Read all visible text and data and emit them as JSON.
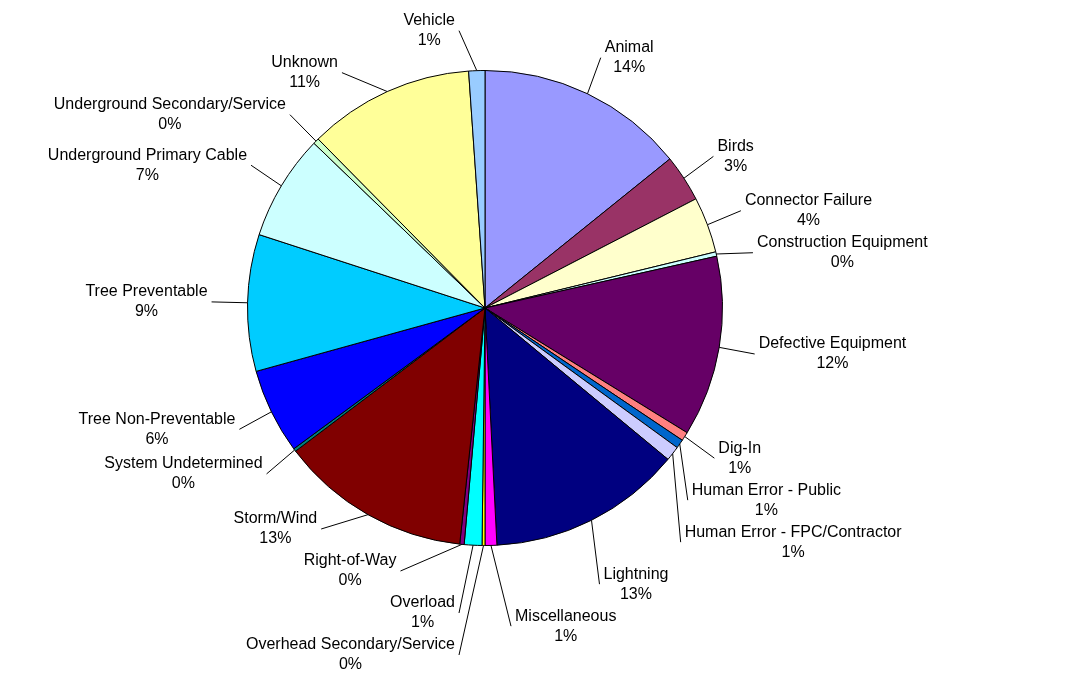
{
  "chart_data": {
    "type": "pie",
    "categories": [
      "Animal",
      "Birds",
      "Connector Failure",
      "Construction Equipment",
      "Defective Equipment",
      "Dig-In",
      "Human Error - Public",
      "Human Error - FPC/Contractor",
      "Lightning",
      "Miscellaneous",
      "Overhead Secondary/Service",
      "Overload",
      "Right-of-Way",
      "Storm/Wind",
      "System Undetermined",
      "Tree Non-Preventable",
      "Tree Preventable",
      "Underground Primary Cable",
      "Underground Secondary/Service",
      "Unknown",
      "Vehicle"
    ],
    "values": [
      14.2,
      3.2,
      3.8,
      0.3,
      12.3,
      0.6,
      0.6,
      1.0,
      13.2,
      0.8,
      0.2,
      1.2,
      0.3,
      13.0,
      0.2,
      5.8,
      9.3,
      7.2,
      0.4,
      11.3,
      1.1
    ],
    "value_labels": [
      "14%",
      "3%",
      "4%",
      "0%",
      "12%",
      "1%",
      "1%",
      "1%",
      "13%",
      "1%",
      "0%",
      "1%",
      "0%",
      "13%",
      "0%",
      "6%",
      "9%",
      "7%",
      "0%",
      "11%",
      "1%"
    ],
    "colors": [
      "#9999ff",
      "#993366",
      "#ffffcc",
      "#ccffff",
      "#660066",
      "#ff8080",
      "#0066cc",
      "#ccccff",
      "#000080",
      "#ff00ff",
      "#ffff00",
      "#00ffff",
      "#800080",
      "#800000",
      "#008080",
      "#0000ff",
      "#00ccff",
      "#ccffff",
      "#ccffcc",
      "#ffff99",
      "#99ccff"
    ]
  }
}
